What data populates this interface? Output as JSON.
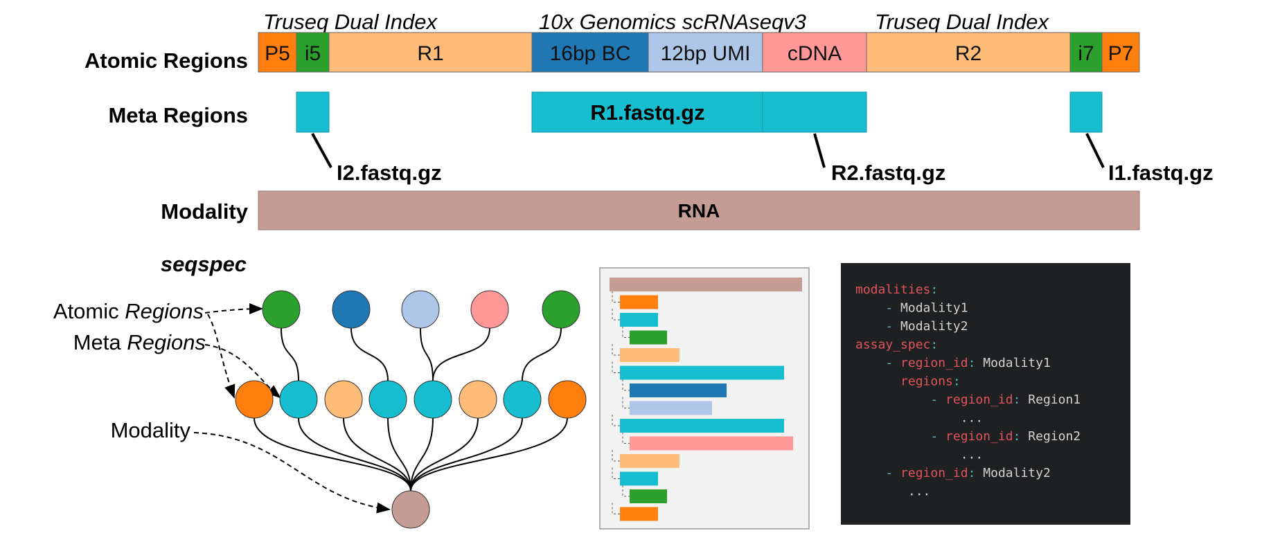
{
  "group_labels": [
    "Truseq Dual Index",
    "10x Genomics scRNAseqv3",
    "Truseq Dual Index"
  ],
  "row_labels": {
    "atomic": "Atomic Regions",
    "meta": "Meta Regions",
    "modality": "Modality",
    "seqspec": "seqspec"
  },
  "atomic_regions": [
    {
      "label": "P5",
      "color": "#ff7f0e"
    },
    {
      "label": "i5",
      "color": "#2ca02c"
    },
    {
      "label": "R1",
      "color": "#ffbb78"
    },
    {
      "label": "16bp BC",
      "color": "#1f77b4"
    },
    {
      "label": "12bp UMI",
      "color": "#aec7e8"
    },
    {
      "label": "cDNA",
      "color": "#ff9896"
    },
    {
      "label": "R2",
      "color": "#ffbb78"
    },
    {
      "label": "i7",
      "color": "#2ca02c"
    },
    {
      "label": "P7",
      "color": "#ff7f0e"
    }
  ],
  "meta_regions": {
    "read1_label": "R1.fastq.gz",
    "callouts": [
      "I2.fastq.gz",
      "R2.fastq.gz",
      "I1.fastq.gz"
    ],
    "color": "#17becf"
  },
  "modality_bar": {
    "label": "RNA",
    "color": "#c49c94"
  },
  "graph_legend": {
    "atomic_plain": "Atomic ",
    "atomic_italic": "Regions",
    "meta_plain": "Meta ",
    "meta_italic": "Regions",
    "modality": "Modality"
  },
  "yaml_lines": [
    {
      "parts": [
        {
          "t": "modalities",
          "c": "key"
        },
        {
          "t": ":",
          "c": "punct"
        }
      ]
    },
    {
      "parts": [
        {
          "t": "    - ",
          "c": "punct"
        },
        {
          "t": "Modality1",
          "c": "val"
        }
      ]
    },
    {
      "parts": [
        {
          "t": "    - ",
          "c": "punct"
        },
        {
          "t": "Modality2",
          "c": "val"
        }
      ]
    },
    {
      "parts": [
        {
          "t": "assay_spec",
          "c": "key"
        },
        {
          "t": ":",
          "c": "punct"
        }
      ]
    },
    {
      "parts": [
        {
          "t": "    - ",
          "c": "punct"
        },
        {
          "t": "region_id",
          "c": "key"
        },
        {
          "t": ": ",
          "c": "punct"
        },
        {
          "t": "Modality1",
          "c": "val"
        }
      ]
    },
    {
      "parts": [
        {
          "t": "      ",
          "c": "punct"
        },
        {
          "t": "regions",
          "c": "key"
        },
        {
          "t": ":",
          "c": "punct"
        }
      ]
    },
    {
      "parts": [
        {
          "t": "          - ",
          "c": "punct"
        },
        {
          "t": "region_id",
          "c": "key"
        },
        {
          "t": ": ",
          "c": "punct"
        },
        {
          "t": "Region1",
          "c": "val"
        }
      ]
    },
    {
      "parts": [
        {
          "t": "              ...",
          "c": "val"
        }
      ]
    },
    {
      "parts": [
        {
          "t": "          - ",
          "c": "punct"
        },
        {
          "t": "region_id",
          "c": "key"
        },
        {
          "t": ": ",
          "c": "punct"
        },
        {
          "t": "Region2",
          "c": "val"
        }
      ]
    },
    {
      "parts": [
        {
          "t": "              ...",
          "c": "val"
        }
      ]
    },
    {
      "parts": [
        {
          "t": "    - ",
          "c": "punct"
        },
        {
          "t": "region_id",
          "c": "key"
        },
        {
          "t": ": ",
          "c": "punct"
        },
        {
          "t": "Modality2",
          "c": "val"
        }
      ]
    },
    {
      "parts": [
        {
          "t": "       ...",
          "c": "val"
        }
      ]
    }
  ],
  "yaml_colors": {
    "key": "#e0545d",
    "punct": "#56b6c2",
    "val": "#d4d4d4",
    "bg": "#1e2022"
  }
}
